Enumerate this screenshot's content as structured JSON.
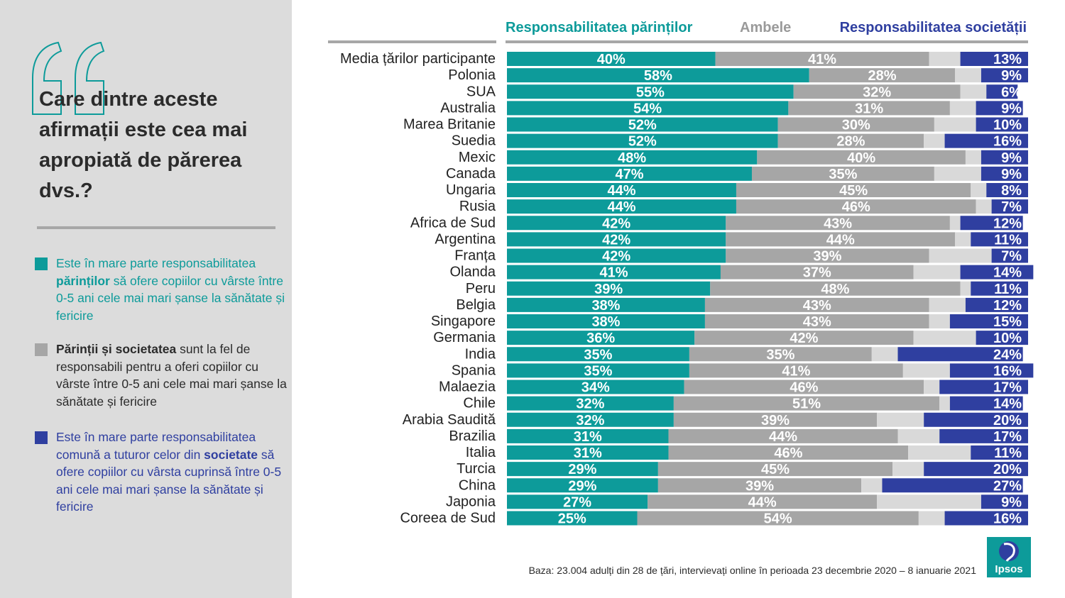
{
  "left_panel": {
    "question": "Care dintre aceste afirmații este cea mai apropiată de părerea dvs.?",
    "legend": {
      "parents": {
        "t1": "Este în mare parte responsabilitatea ",
        "bold": "părinților",
        "t2": " să ofere copiilor cu vârste între 0-5 ani cele mai mari șanse la sănătate și fericire"
      },
      "both": {
        "bold": "Părinții și societatea",
        "t2": " sunt la fel de responsabili pentru a oferi copiilor cu vârste între 0-5 ani cele mai mari șanse la sănătate și fericire"
      },
      "society": {
        "t1": "Este în mare parte responsabilitatea comună a tuturor celor din ",
        "bold": "societate",
        "t2": " să ofere copiilor cu vârsta cuprinsă între 0-5 ani cele mai mari șanse la sănătate și fericire"
      }
    }
  },
  "footer": {
    "source": "Baza: 23.004 adulți din 28 de țări, intervievați online în perioada 23 decembrie 2020 – 8 ianuarie 2021",
    "logo_text": "Ipsos"
  },
  "colors": {
    "parents": "#0d9b9a",
    "both": "#a6a6a6",
    "unlabeled": "#d9d9d9",
    "society": "#2f3fa0"
  },
  "chart_data": {
    "type": "bar",
    "orientation": "horizontal",
    "stacked": true,
    "value_suffix": "%",
    "xlim": [
      0,
      100
    ],
    "legend": "top",
    "categories": [
      "Media țărilor participante",
      "Polonia",
      "SUA",
      "Australia",
      "Marea Britanie",
      "Suedia",
      "Mexic",
      "Canada",
      "Ungaria",
      "Rusia",
      "Africa de Sud",
      "Argentina",
      "Franța",
      "Olanda",
      "Peru",
      "Belgia",
      "Singapore",
      "Germania",
      "India",
      "Spania",
      "Malaezia",
      "Chile",
      "Arabia Saudită",
      "Brazilia",
      "Italia",
      "Turcia",
      "China",
      "Japonia",
      "Coreea de Sud"
    ],
    "series": [
      {
        "name": "Responsabilitatea părinților",
        "key": "parents",
        "values": [
          40,
          58,
          55,
          54,
          52,
          52,
          48,
          47,
          44,
          44,
          42,
          42,
          42,
          41,
          39,
          38,
          38,
          36,
          35,
          35,
          34,
          32,
          32,
          31,
          31,
          29,
          29,
          27,
          25
        ]
      },
      {
        "name": "Ambele",
        "key": "both",
        "values": [
          41,
          28,
          32,
          31,
          30,
          28,
          40,
          35,
          45,
          46,
          43,
          44,
          39,
          37,
          48,
          43,
          43,
          42,
          35,
          41,
          46,
          51,
          39,
          44,
          46,
          45,
          39,
          44,
          54
        ]
      },
      {
        "name": "",
        "key": "unlabeled",
        "values": [
          6,
          5,
          5,
          5,
          8,
          4,
          3,
          9,
          3,
          3,
          2,
          3,
          12,
          9,
          2,
          7,
          4,
          12,
          5,
          9,
          3,
          2,
          9,
          8,
          12,
          6,
          4,
          20,
          5
        ]
      },
      {
        "name": "Responsabilitatea societății",
        "key": "society",
        "values": [
          13,
          9,
          6,
          9,
          10,
          16,
          9,
          9,
          8,
          7,
          12,
          11,
          7,
          14,
          11,
          12,
          15,
          10,
          24,
          16,
          17,
          14,
          20,
          17,
          11,
          20,
          27,
          9,
          16
        ]
      }
    ]
  }
}
